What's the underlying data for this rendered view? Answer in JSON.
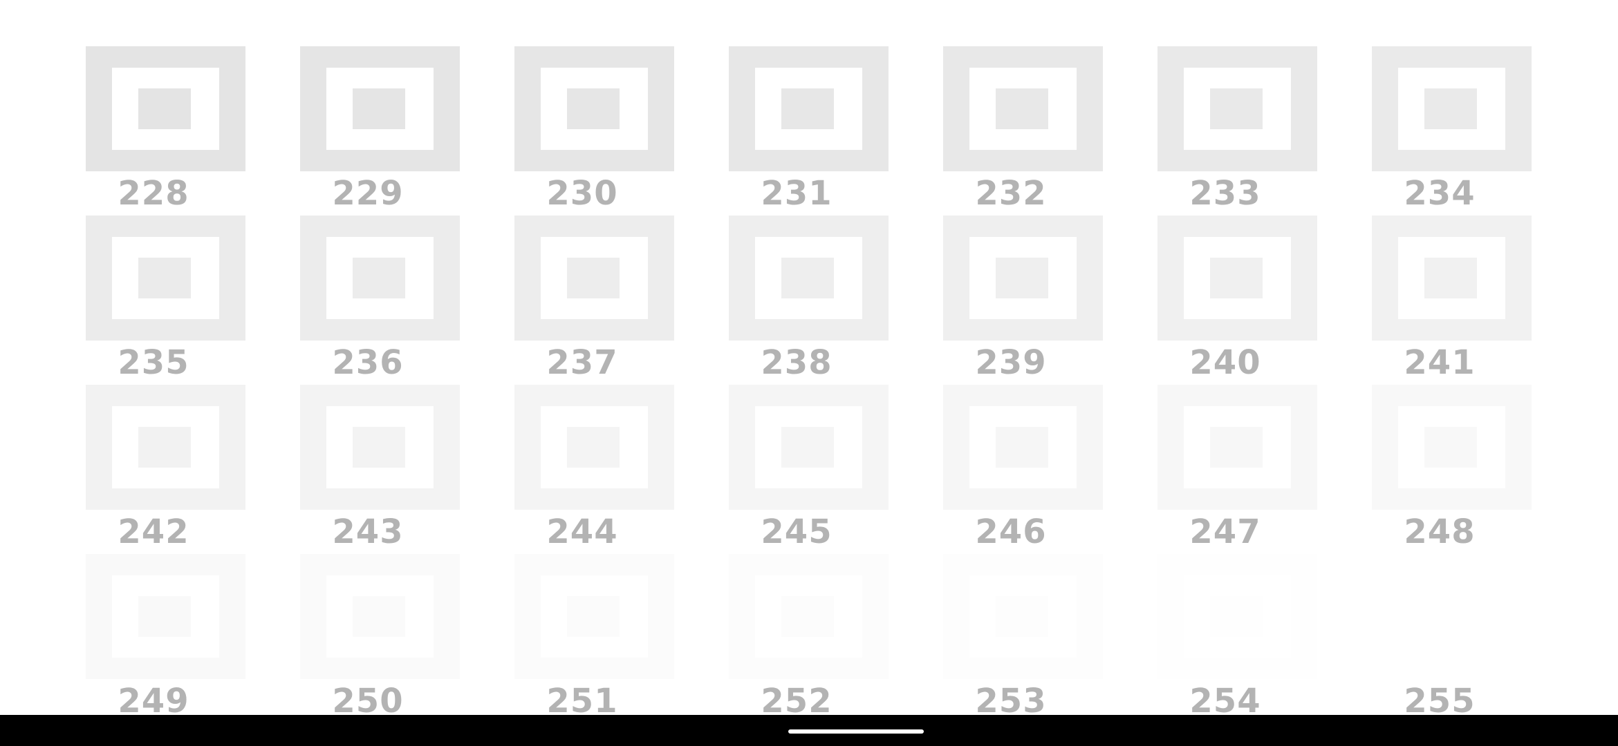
{
  "swatches": [
    {
      "label": "228",
      "color": "#e4e4e4"
    },
    {
      "label": "229",
      "color": "#e5e5e5"
    },
    {
      "label": "230",
      "color": "#e6e6e6"
    },
    {
      "label": "231",
      "color": "#e7e7e7"
    },
    {
      "label": "232",
      "color": "#e8e8e8"
    },
    {
      "label": "233",
      "color": "#e9e9e9"
    },
    {
      "label": "234",
      "color": "#eaeaea"
    },
    {
      "label": "235",
      "color": "#ebebeb"
    },
    {
      "label": "236",
      "color": "#ececec"
    },
    {
      "label": "237",
      "color": "#ededed"
    },
    {
      "label": "238",
      "color": "#eeeeee"
    },
    {
      "label": "239",
      "color": "#efefef"
    },
    {
      "label": "240",
      "color": "#f0f0f0"
    },
    {
      "label": "241",
      "color": "#f1f1f1"
    },
    {
      "label": "242",
      "color": "#f2f2f2"
    },
    {
      "label": "243",
      "color": "#f3f3f3"
    },
    {
      "label": "244",
      "color": "#f4f4f4"
    },
    {
      "label": "245",
      "color": "#f5f5f5"
    },
    {
      "label": "246",
      "color": "#f6f6f6"
    },
    {
      "label": "247",
      "color": "#f7f7f7"
    },
    {
      "label": "248",
      "color": "#f8f8f8"
    },
    {
      "label": "249",
      "color": "#f9f9f9"
    },
    {
      "label": "250",
      "color": "#fafafa"
    },
    {
      "label": "251",
      "color": "#fbfbfb"
    },
    {
      "label": "252",
      "color": "#fcfcfc"
    },
    {
      "label": "253",
      "color": "#fdfdfd"
    },
    {
      "label": "254",
      "color": "#fefefe"
    },
    {
      "label": "255",
      "color": "#ffffff"
    }
  ],
  "colors": {
    "background": "#ffffff",
    "label": "#b3b3b3",
    "nav_bar": "#000000",
    "home_indicator": "#ffffff"
  },
  "icons": {
    "home_indicator": "home-indicator-bar"
  }
}
